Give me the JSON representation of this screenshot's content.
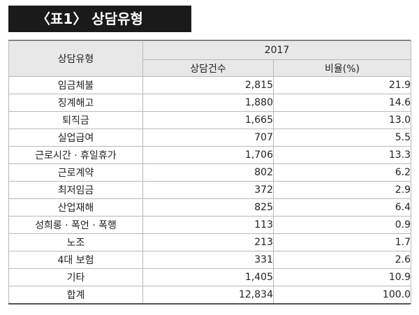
{
  "title": "〈표1〉 상담유형",
  "table": {
    "header": {
      "category": "상담유형",
      "year": "2017",
      "count": "상담건수",
      "ratio": "비율(%)"
    },
    "rows": [
      {
        "category": "임금체불",
        "count": "2,815",
        "ratio": "21.9"
      },
      {
        "category": "징계해고",
        "count": "1,880",
        "ratio": "14.6"
      },
      {
        "category": "퇴직금",
        "count": "1,665",
        "ratio": "13.0"
      },
      {
        "category": "실업급여",
        "count": "707",
        "ratio": "5.5"
      },
      {
        "category": "근로시간 · 휴일휴가",
        "count": "1,706",
        "ratio": "13.3"
      },
      {
        "category": "근로계약",
        "count": "802",
        "ratio": "6.2"
      },
      {
        "category": "최저임금",
        "count": "372",
        "ratio": "2.9"
      },
      {
        "category": "산업재해",
        "count": "825",
        "ratio": "6.4"
      },
      {
        "category": "성희롱 · 폭언 · 폭행",
        "count": "113",
        "ratio": "0.9"
      },
      {
        "category": "노조",
        "count": "213",
        "ratio": "1.7"
      },
      {
        "category": "4대 보험",
        "count": "331",
        "ratio": "2.6"
      },
      {
        "category": "기타",
        "count": "1,405",
        "ratio": "10.9"
      },
      {
        "category": "합계",
        "count": "12,834",
        "ratio": "100.0"
      }
    ]
  }
}
